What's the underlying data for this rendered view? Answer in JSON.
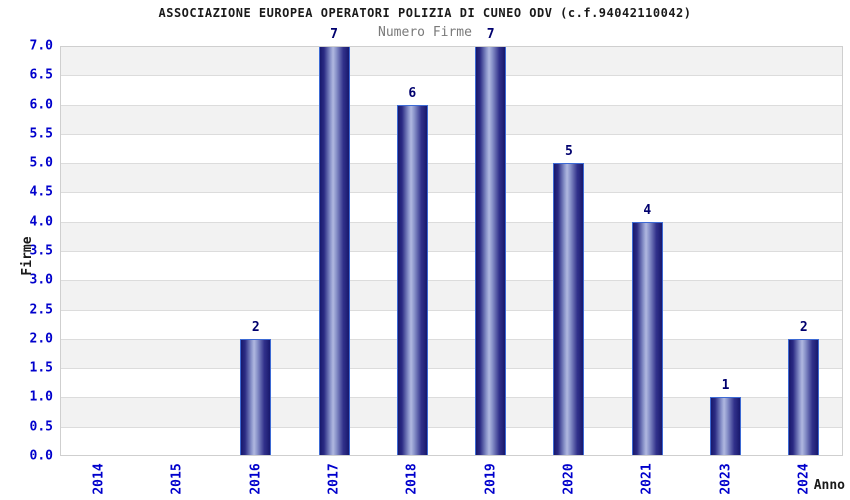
{
  "header": {
    "title": "ASSOCIAZIONE EUROPEA OPERATORI POLIZIA DI CUNEO ODV (c.f.94042110042)",
    "subtitle": "Numero Firme"
  },
  "chart_data": {
    "type": "bar",
    "title": "ASSOCIAZIONE EUROPEA OPERATORI POLIZIA DI CUNEO ODV (c.f.94042110042)",
    "subtitle": "Numero Firme",
    "categories": [
      "2014",
      "2015",
      "2016",
      "2017",
      "2018",
      "2019",
      "2020",
      "2021",
      "2023",
      "2024"
    ],
    "values": [
      0,
      0,
      2,
      7,
      6,
      7,
      5,
      4,
      1,
      2
    ],
    "xlabel": "Anno",
    "ylabel": "Firme",
    "ylim": [
      0,
      7
    ],
    "ytick_step": 0.5,
    "ytick_labels": [
      "0.0",
      "0.5",
      "1.0",
      "1.5",
      "2.0",
      "2.5",
      "3.0",
      "3.5",
      "4.0",
      "4.5",
      "5.0",
      "5.5",
      "6.0",
      "6.5",
      "7.0"
    ],
    "grid": true,
    "legend": false,
    "colors": {
      "title_text": "#1a1a1a",
      "subtitle_text": "#7a7a7a",
      "axis_tick_text": "#0000cc",
      "value_label_text": "#00006e",
      "bar_dark": "#18186c",
      "bar_mid": "#8a94ca",
      "bar_light": "#b0b8e0",
      "bar_border": "#3d6ad4",
      "band_gray": "#f2f2f2",
      "band_white": "#ffffff",
      "grid_line": "#dcdcdc",
      "plot_border": "#cfcfcf",
      "background": "#ffffff"
    }
  }
}
